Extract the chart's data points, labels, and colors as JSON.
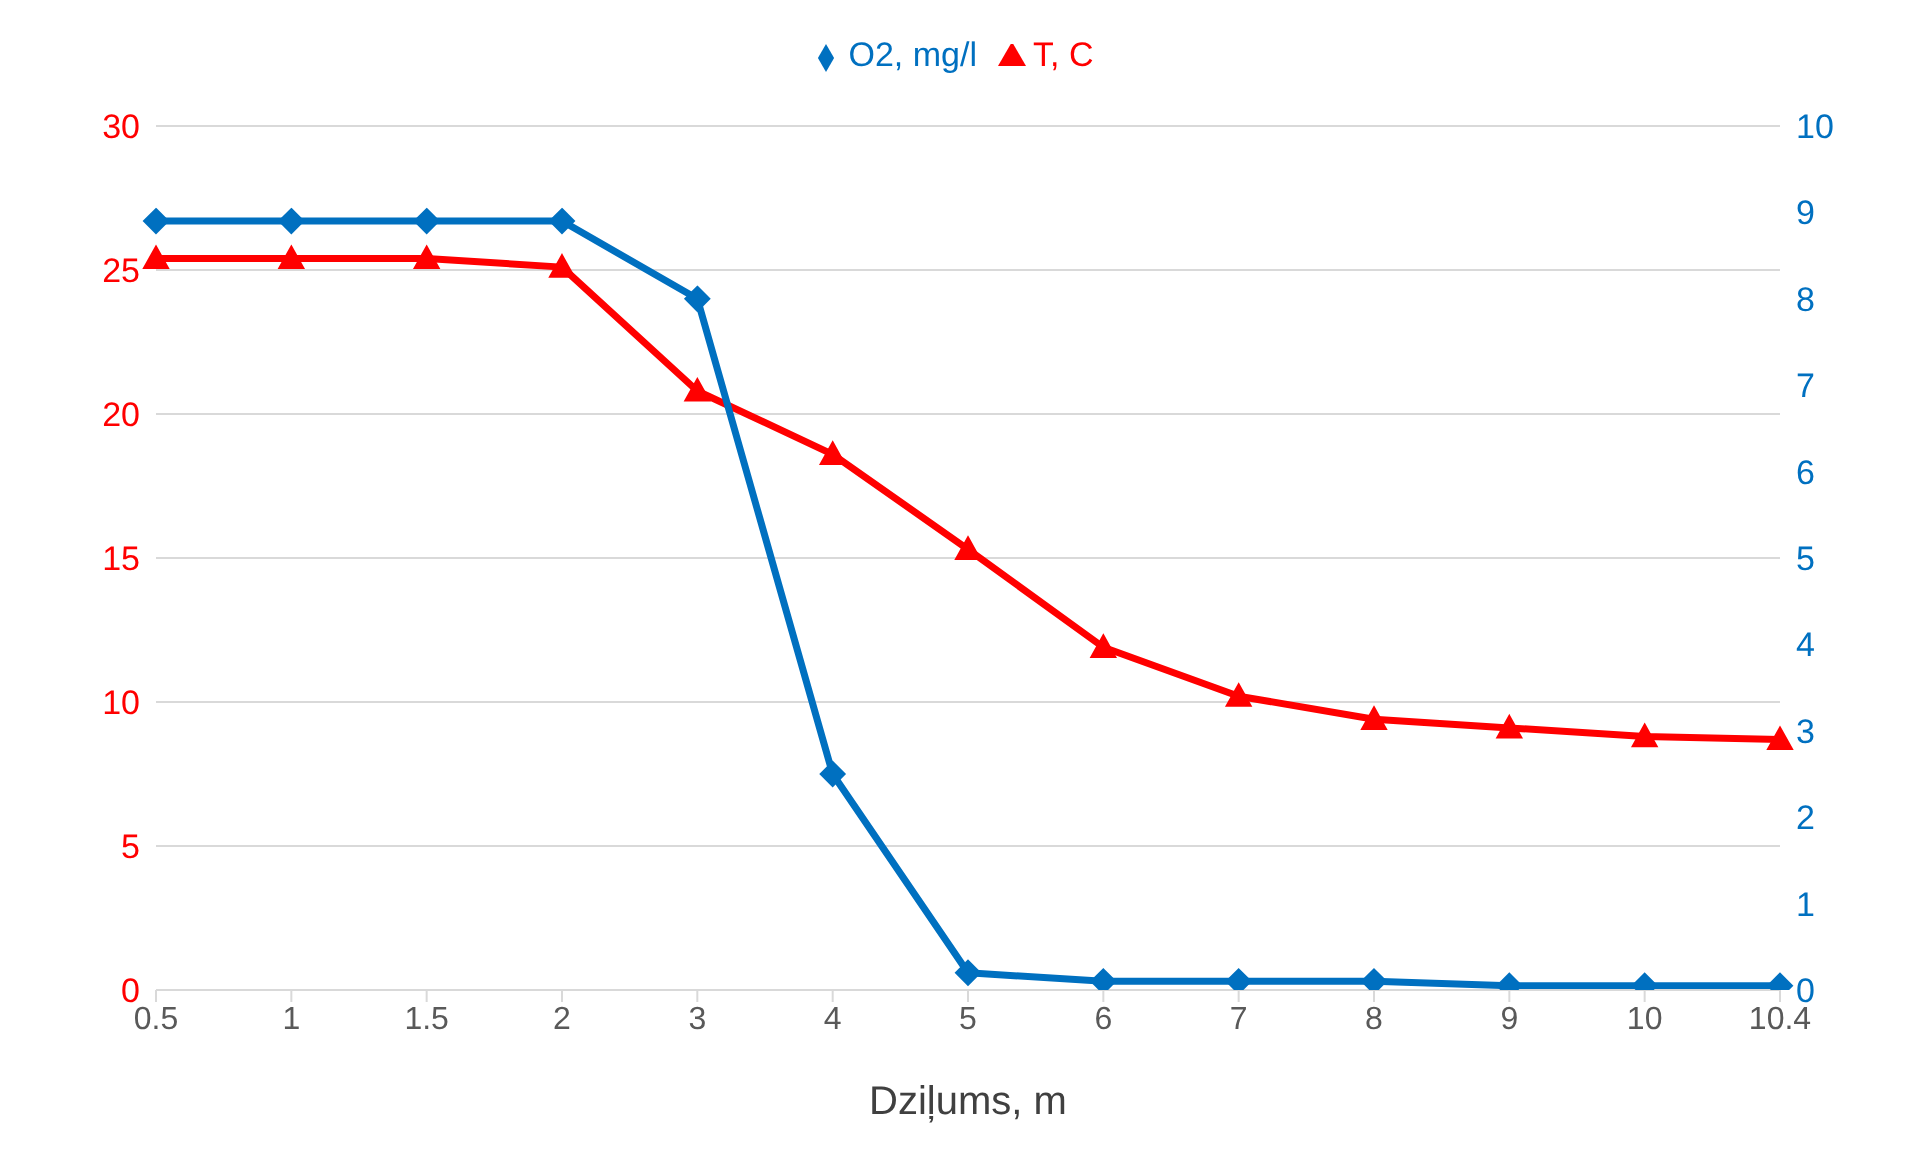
{
  "chart_data": {
    "type": "line",
    "xlabel": "Dziļums, m",
    "categories": [
      "0.5",
      "1",
      "1.5",
      "2",
      "3",
      "4",
      "5",
      "6",
      "7",
      "8",
      "9",
      "10",
      "10.4"
    ],
    "series": [
      {
        "name": "T, C",
        "color": "#ff0000",
        "marker": "triangle",
        "values": [
          25.4,
          25.4,
          25.4,
          25.1,
          20.8,
          18.6,
          15.3,
          11.9,
          10.2,
          9.4,
          9.1,
          8.8,
          8.7
        ]
      },
      {
        "name": "O2, mg/l",
        "color": "#0070c0",
        "marker": "diamond",
        "axis": "y2",
        "values": [
          8.9,
          8.9,
          8.9,
          8.9,
          8.0,
          2.5,
          0.2,
          0.1,
          0.1,
          0.1,
          0.05,
          0.05,
          0.05
        ]
      }
    ],
    "ylim": [
      0,
      30
    ],
    "yticks": [
      0,
      5,
      10,
      15,
      20,
      25,
      30
    ],
    "y2lim": [
      0,
      10
    ],
    "y2ticks": [
      0,
      1,
      2,
      3,
      4,
      5,
      6,
      7,
      8,
      9,
      10
    ],
    "grid": "y",
    "legend": "top",
    "line_style": "solid"
  }
}
